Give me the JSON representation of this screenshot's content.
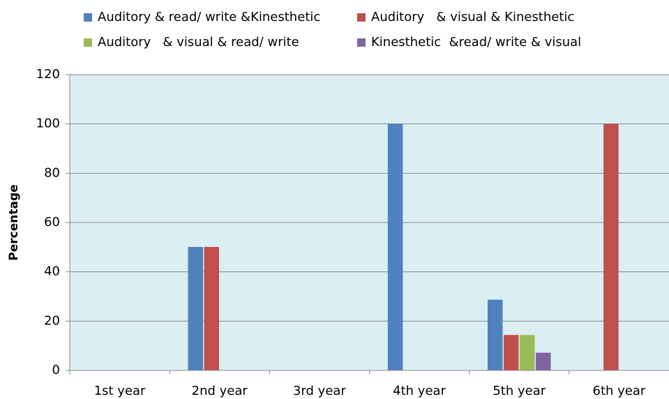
{
  "chart_data": {
    "type": "bar",
    "y_label": "Percentage",
    "categories": [
      "1st year",
      "2nd year",
      "3rd year",
      "4th year",
      "5th year",
      "6th year"
    ],
    "series": [
      {
        "name": "Auditory & read/ write &Kinesthetic",
        "color": "#4f81bd",
        "values": [
          0,
          50,
          0,
          100,
          28.6,
          0
        ]
      },
      {
        "name": "Auditory   & visual & Kinesthetic",
        "color": "#c0504d",
        "values": [
          0,
          50,
          0,
          0,
          14.3,
          100
        ]
      },
      {
        "name": "Auditory   & visual & read/ write",
        "color": "#9bbb59",
        "values": [
          0,
          0,
          0,
          0,
          14.3,
          0
        ]
      },
      {
        "name": "Kinesthetic  &read/ write & visual",
        "color": "#8064a2",
        "values": [
          0,
          0,
          0,
          0,
          7.1,
          0
        ]
      }
    ],
    "ylim": [
      0,
      120
    ],
    "yticks": [
      0,
      20,
      40,
      60,
      80,
      100,
      120
    ],
    "grid": true,
    "legend": "top",
    "plot_background": "#daeef3"
  }
}
